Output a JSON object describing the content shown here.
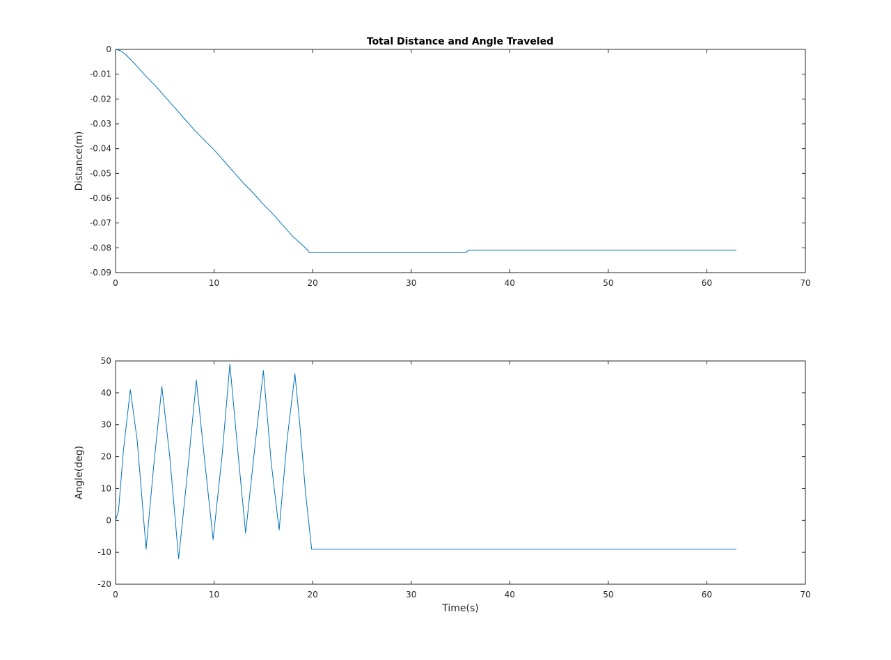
{
  "figure": {
    "title": "Total Distance and Angle Traveled"
  },
  "chart_data": [
    {
      "type": "line",
      "title": "Total Distance and Angle Traveled",
      "xlabel": "",
      "ylabel": "Distance(m)",
      "xlim": [
        0,
        70
      ],
      "ylim": [
        -0.09,
        0
      ],
      "xticks": [
        0,
        10,
        20,
        30,
        40,
        50,
        60,
        70
      ],
      "yticks": [
        0,
        -0.01,
        -0.02,
        -0.03,
        -0.04,
        -0.05,
        -0.06,
        -0.07,
        -0.08,
        -0.09
      ],
      "xtick_labels": [
        "0",
        "10",
        "20",
        "30",
        "40",
        "50",
        "60",
        "70"
      ],
      "ytick_labels": [
        "0",
        "-0.01",
        "-0.02",
        "-0.03",
        "-0.04",
        "-0.05",
        "-0.06",
        "-0.07",
        "-0.08",
        "-0.09"
      ],
      "grid": false,
      "line_color": "#0072bd",
      "series": [
        {
          "x": [
            0,
            0.5,
            1.0,
            2.0,
            3.0,
            4.0,
            5.0,
            6.0,
            7.0,
            8.0,
            9.0,
            10.0,
            11.0,
            12.0,
            13.0,
            14.0,
            15.0,
            16.0,
            17.0,
            18.0,
            19.0,
            19.5,
            19.7,
            25.0,
            30.0,
            35.5,
            35.8,
            40.0,
            50.0,
            60.0,
            63.0
          ],
          "y": [
            0,
            -0.0005,
            -0.002,
            -0.006,
            -0.0105,
            -0.0145,
            -0.019,
            -0.0235,
            -0.028,
            -0.0325,
            -0.0365,
            -0.0405,
            -0.045,
            -0.0495,
            -0.054,
            -0.058,
            -0.0625,
            -0.0665,
            -0.071,
            -0.0755,
            -0.079,
            -0.081,
            -0.082,
            -0.082,
            -0.082,
            -0.082,
            -0.081,
            -0.081,
            -0.081,
            -0.081,
            -0.081
          ]
        }
      ]
    },
    {
      "type": "line",
      "title": "",
      "xlabel": "Time(s)",
      "ylabel": "Angle(deg)",
      "xlim": [
        0,
        70
      ],
      "ylim": [
        -20,
        50
      ],
      "xticks": [
        0,
        10,
        20,
        30,
        40,
        50,
        60,
        70
      ],
      "yticks": [
        -20,
        -10,
        0,
        10,
        20,
        30,
        40,
        50
      ],
      "xtick_labels": [
        "0",
        "10",
        "20",
        "30",
        "40",
        "50",
        "60",
        "70"
      ],
      "ytick_labels": [
        "-20",
        "-10",
        "0",
        "10",
        "20",
        "30",
        "40",
        "50"
      ],
      "grid": false,
      "line_color": "#0072bd",
      "series": [
        {
          "x": [
            0,
            0.3,
            0.8,
            1.5,
            2.2,
            3.1,
            3.9,
            4.7,
            5.5,
            6.4,
            7.3,
            8.2,
            9.0,
            9.9,
            10.8,
            11.6,
            12.4,
            13.2,
            14.1,
            15.0,
            15.8,
            16.6,
            17.4,
            18.2,
            18.7,
            19.3,
            19.9,
            25.0,
            30.0,
            40.0,
            50.0,
            60.0,
            63.0
          ],
          "y": [
            0,
            3,
            22,
            41,
            25,
            -9,
            18,
            42,
            20,
            -12,
            15,
            44,
            20,
            -6,
            20,
            49,
            22,
            -4,
            22,
            47,
            18,
            -3,
            25,
            46,
            30,
            8,
            -9,
            -9,
            -9,
            -9,
            -9,
            -9,
            -9
          ]
        }
      ]
    }
  ]
}
